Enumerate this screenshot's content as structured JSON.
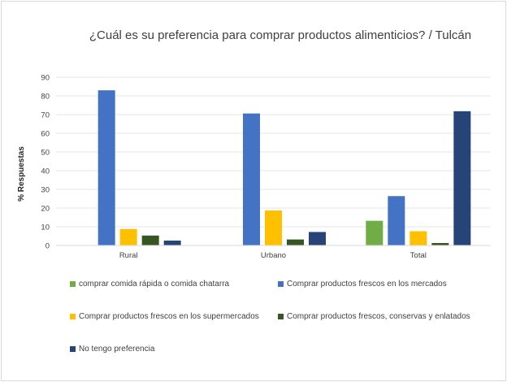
{
  "chart_data": {
    "type": "bar",
    "title": "¿Cuál es su preferencia para comprar productos alimenticios? / Tulcán",
    "ylabel": "% Respuestas",
    "xlabel": "",
    "ylim": [
      0,
      90
    ],
    "yticks": [
      0,
      10,
      20,
      30,
      40,
      50,
      60,
      70,
      80,
      90
    ],
    "grid": true,
    "legend_position": "bottom",
    "categories": [
      "Rural",
      "Urbano",
      "Total"
    ],
    "series": [
      {
        "name": "comprar comida rápida o comida chatarra",
        "color": "#70ad47",
        "values": [
          null,
          null,
          13.2
        ]
      },
      {
        "name": "Comprar productos frescos en los mercados",
        "color": "#4472c4",
        "values": [
          83.0,
          70.6,
          26.4
        ]
      },
      {
        "name": "Comprar productos frescos en los supermercados",
        "color": "#ffc000",
        "values": [
          8.8,
          18.7,
          7.6
        ]
      },
      {
        "name": "Comprar productos frescos, conservas y enlatados",
        "color": "#375623",
        "values": [
          5.3,
          3.2,
          1.3
        ]
      },
      {
        "name": "No tengo preferencia",
        "color": "#264478",
        "values": [
          2.6,
          7.2,
          71.8
        ]
      }
    ]
  }
}
